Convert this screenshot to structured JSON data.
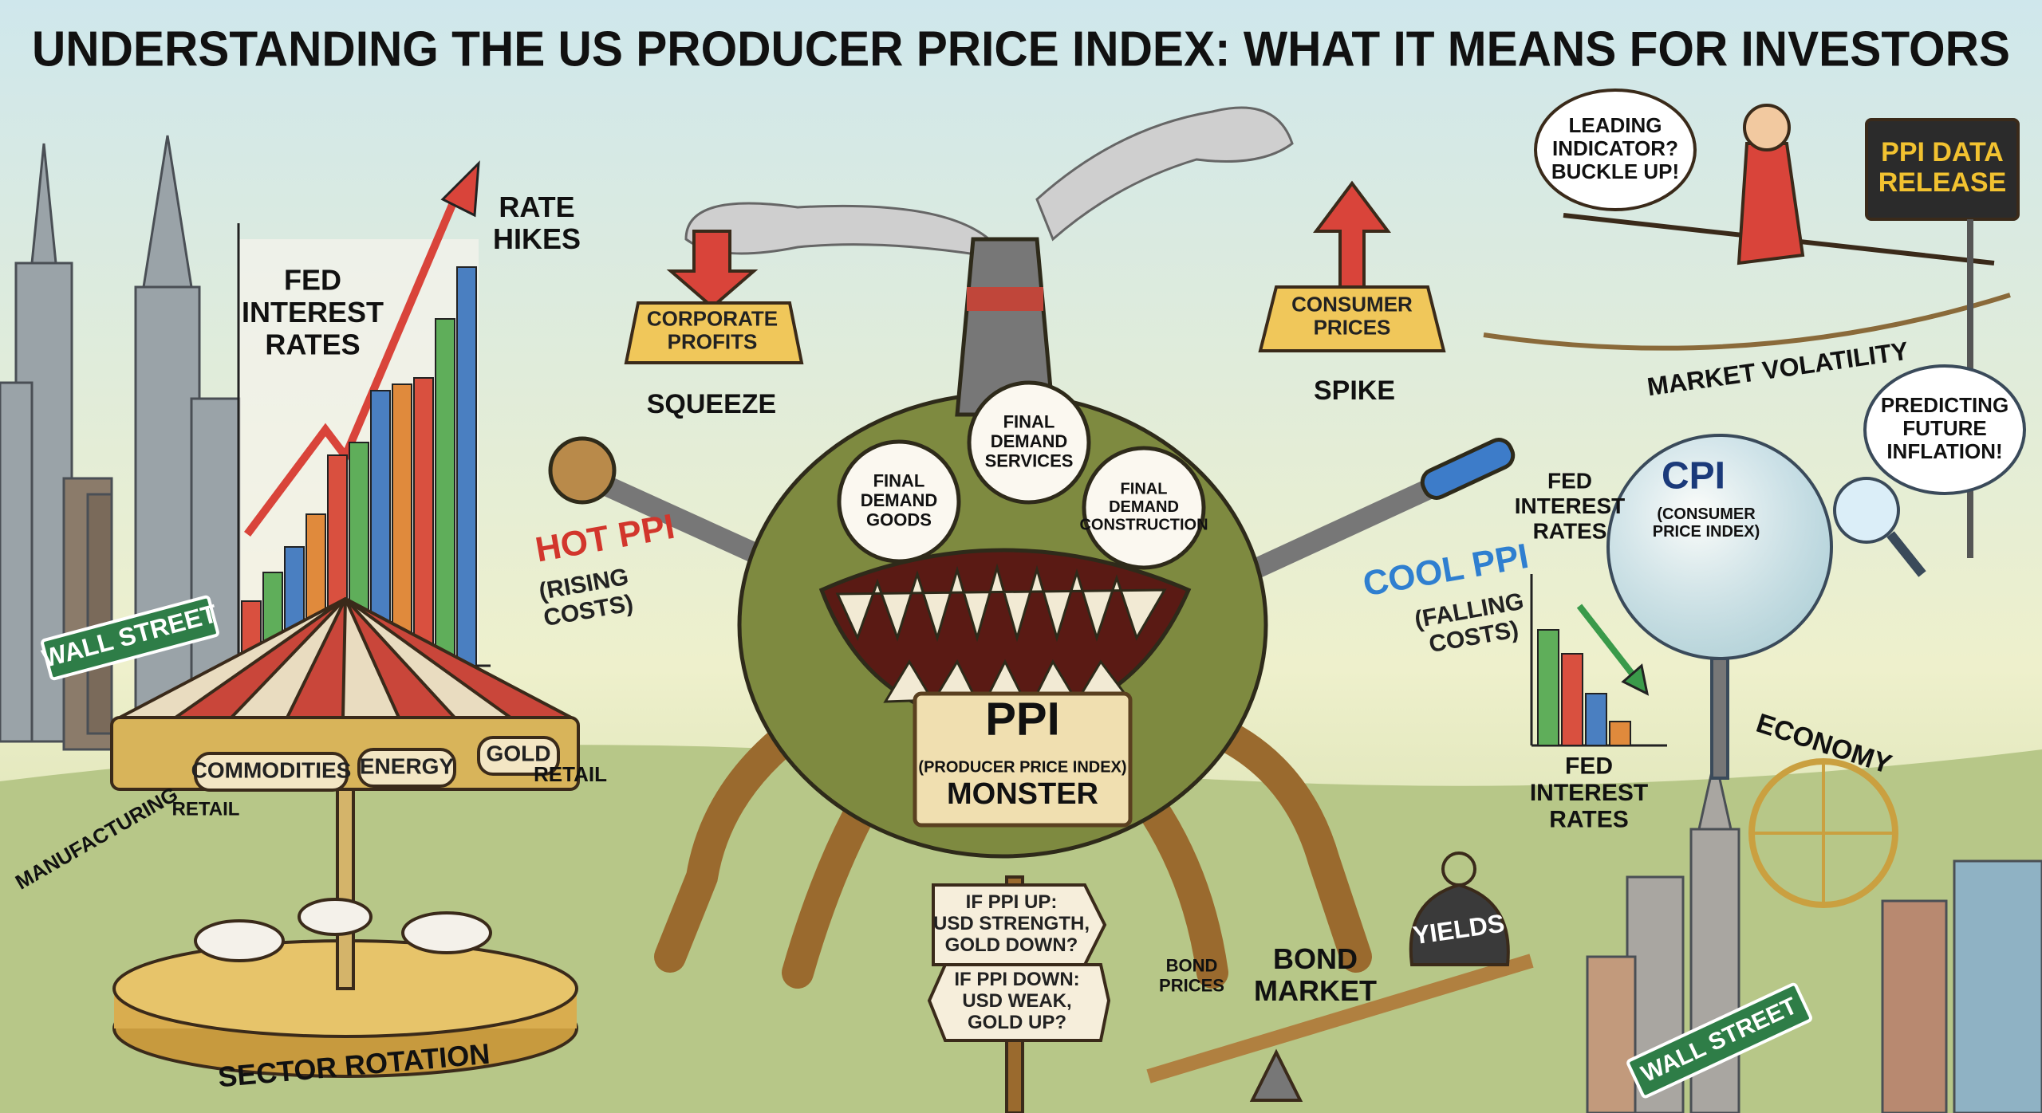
{
  "title": "UNDERSTANDING THE US PRODUCER PRICE INDEX: WHAT IT MEANS FOR INVESTORS",
  "left_chart": {
    "label": [
      "FED",
      "INTEREST",
      "RATES"
    ],
    "arrow_label": [
      "RATE",
      "HIKES"
    ]
  },
  "wall_street_sign": "WALL STREET",
  "carousel": {
    "panels": [
      "COMMODITIES",
      "ENERGY",
      "GOLD"
    ],
    "riders": [
      "MANUFACTURING",
      "RETAIL",
      "RETAIL"
    ],
    "base": "SECTOR ROTATION"
  },
  "monster": {
    "eyes": [
      [
        "FINAL",
        "DEMAND",
        "GOODS"
      ],
      [
        "FINAL",
        "DEMAND",
        "SERVICES"
      ],
      [
        "FINAL",
        "DEMAND",
        "CONSTRUCTION"
      ]
    ],
    "plate": [
      "PPI",
      "(PRODUCER PRICE INDEX)",
      "MONSTER"
    ]
  },
  "corporate_profits": {
    "sign": [
      "CORPORATE",
      "PROFITS"
    ],
    "label": "SQUEEZE"
  },
  "consumer_prices": {
    "sign": [
      "CONSUMER",
      "PRICES"
    ],
    "label": "SPIKE"
  },
  "hot_ppi": {
    "title": "HOT PPI",
    "note": [
      "(RISING",
      "COSTS)"
    ]
  },
  "cool_ppi": {
    "title": "COOL PPI",
    "note": [
      "(FALLING",
      "COSTS)"
    ]
  },
  "signpost": [
    [
      "IF PPI UP:",
      "USD STRENGTH,",
      "GOLD DOWN?"
    ],
    [
      "IF PPI DOWN:",
      "USD WEAK,",
      "GOLD UP?"
    ]
  ],
  "bond_market": {
    "title": [
      "BOND",
      "MARKET"
    ],
    "prices": [
      "BOND",
      "PRICES"
    ],
    "weight": "YIELDS"
  },
  "jester": {
    "bubble": [
      "LEADING",
      "INDICATOR?",
      "BUCKLE UP!"
    ],
    "rope": "MARKET VOLATILITY"
  },
  "release_sign": [
    "PPI DATA",
    "RELEASE"
  ],
  "right_chart": {
    "top_label": [
      "FED",
      "INTEREST",
      "RATES"
    ],
    "bottom_label": [
      "FED",
      "INTEREST",
      "RATES"
    ]
  },
  "cpi": {
    "title": "CPI",
    "subtitle": [
      "(CONSUMER",
      "PRICE INDEX)"
    ]
  },
  "analyst_bubble": [
    "PREDICTING",
    "FUTURE",
    "INFLATION!"
  ],
  "economy": "ECONOMY",
  "street_sign": "WALL STREET"
}
